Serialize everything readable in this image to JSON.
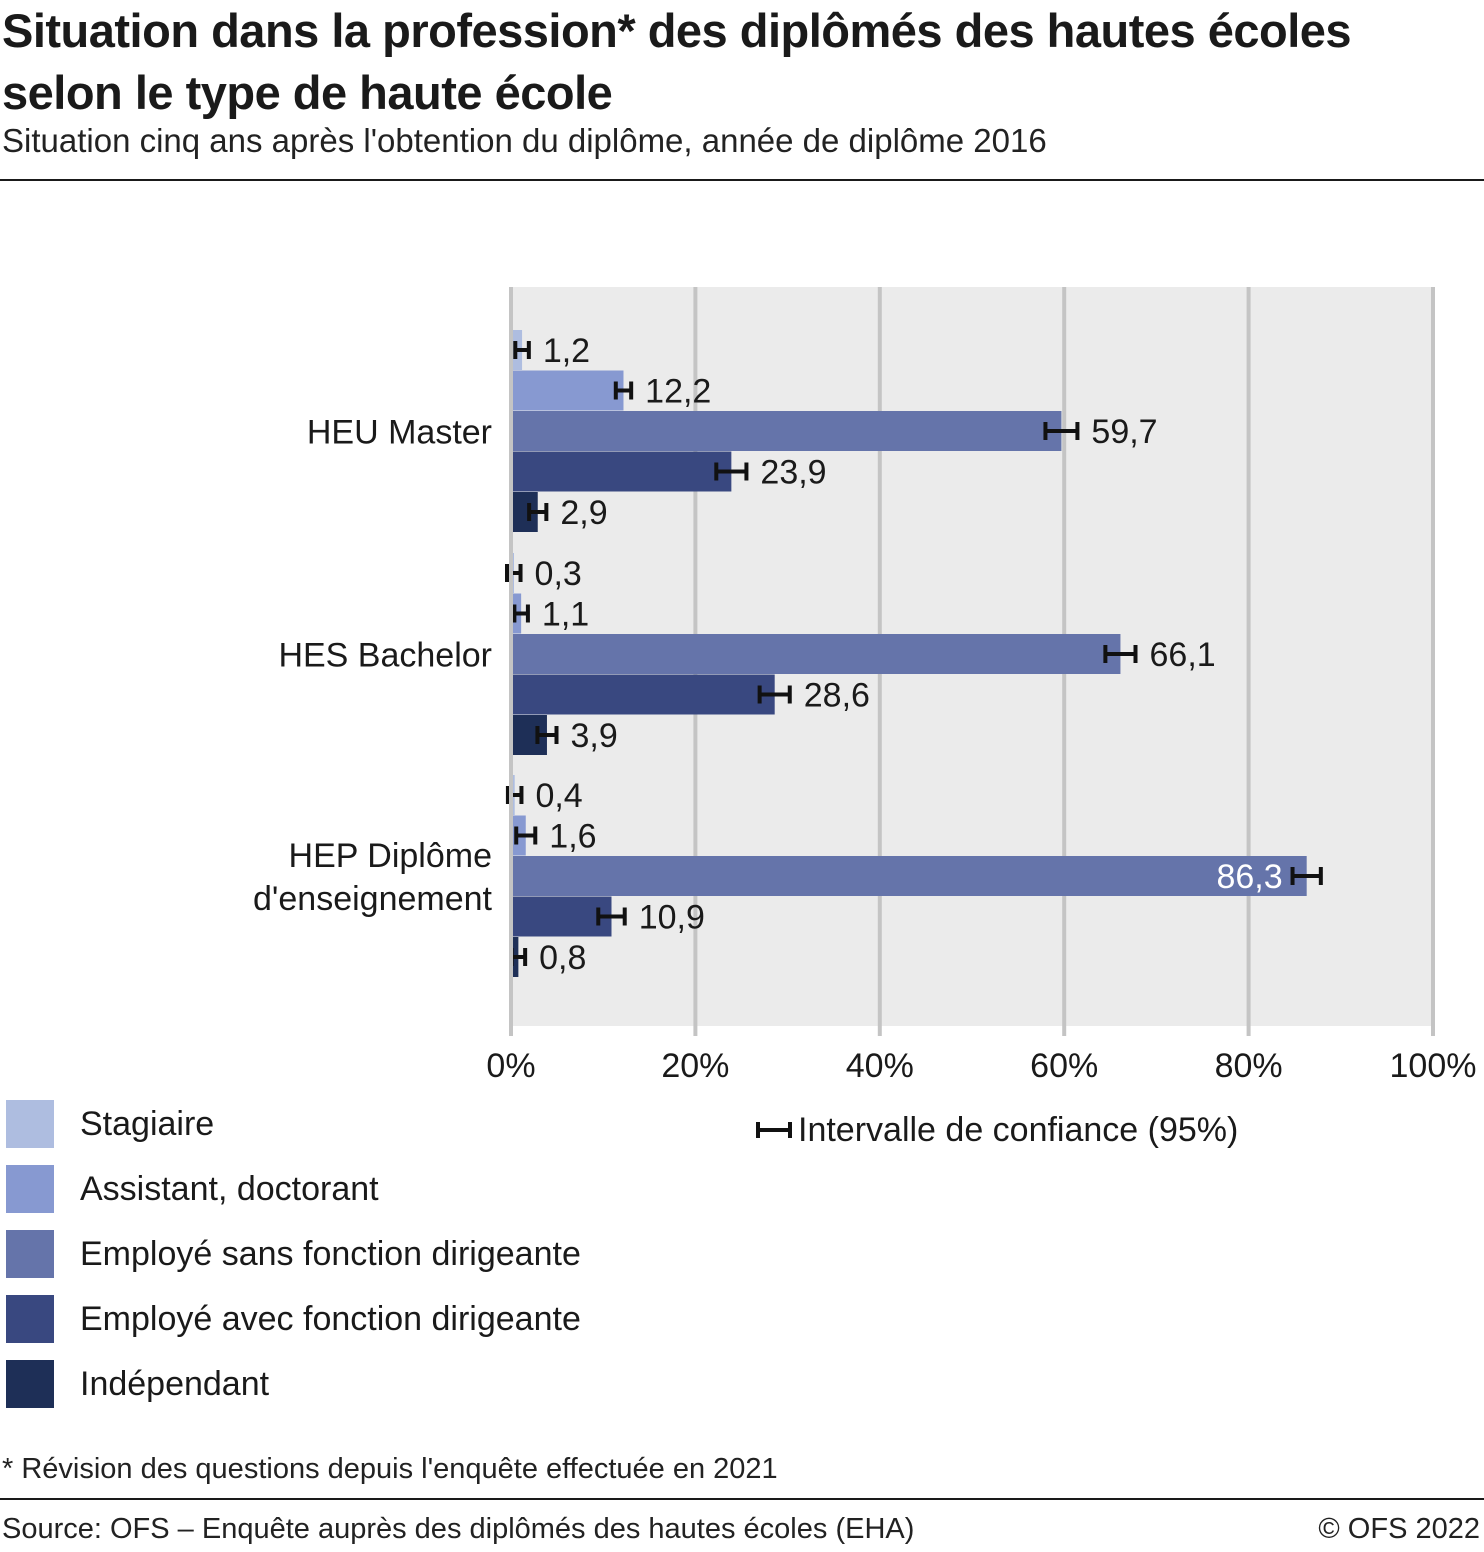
{
  "header": {
    "title": "Situation dans la profession* des diplômés des hautes écoles selon le type de haute école",
    "subtitle": "Situation cinq ans après l'obtention du diplôme, année de diplôme 2016"
  },
  "chart_data": {
    "type": "bar",
    "orientation": "horizontal",
    "categories": [
      "HEU Master",
      "HES Bachelor",
      "HEP Diplôme d'enseignement"
    ],
    "series": [
      {
        "name": "Stagiaire",
        "color": "#aebde0",
        "values": [
          1.2,
          0.3,
          0.4
        ],
        "labels": [
          "1,2",
          "0,3",
          "0,4"
        ]
      },
      {
        "name": "Assistant, doctorant",
        "color": "#8799d1",
        "values": [
          12.2,
          1.1,
          1.6
        ],
        "labels": [
          "12,2",
          "1,1",
          "1,6"
        ]
      },
      {
        "name": "Employé sans fonction dirigeante",
        "color": "#6574aa",
        "values": [
          59.7,
          66.1,
          86.3
        ],
        "labels": [
          "59,7",
          "66,1",
          "86,3"
        ]
      },
      {
        "name": "Employé avec fonction dirigeante",
        "color": "#394880",
        "values": [
          23.9,
          28.6,
          10.9
        ],
        "labels": [
          "23,9",
          "28,6",
          "10,9"
        ]
      },
      {
        "name": "Indépendant",
        "color": "#1e2f57",
        "values": [
          2.9,
          3.9,
          0.8
        ],
        "labels": [
          "2,9",
          "3,9",
          "0,8"
        ]
      }
    ],
    "confidence_interval_halfwidth": [
      [
        0.3,
        0.3,
        0.3
      ],
      [
        0.4,
        0.3,
        0.6
      ],
      [
        1.3,
        1.2,
        1.1
      ],
      [
        1.2,
        1.2,
        1.0
      ],
      [
        0.5,
        0.6,
        0.3
      ]
    ],
    "xlim": [
      0,
      100
    ],
    "xticks": [
      "0%",
      "20%",
      "40%",
      "60%",
      "80%",
      "100%"
    ],
    "grid": true,
    "legend_position": "bottom-left",
    "ci_legend_label": "Intervalle de confiance (95%)"
  },
  "footnote": "* Révision des questions depuis l'enquête effectuée en 2021",
  "source": "Source: OFS – Enquête auprès des diplômés des hautes écoles (EHA)",
  "copyright": "© OFS 2022"
}
